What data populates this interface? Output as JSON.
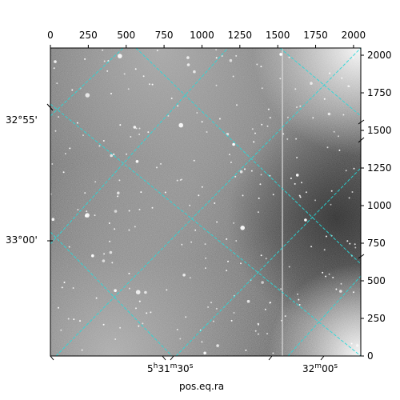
{
  "image": {
    "description_hidden": false,
    "colormap": "gray"
  },
  "axes": {
    "top_ticks": [
      "0",
      "250",
      "500",
      "750",
      "1000",
      "1250",
      "1500",
      "1750",
      "2000"
    ],
    "right_ticks": [
      "0",
      "250",
      "500",
      "750",
      "1000",
      "1250",
      "1500",
      "1750",
      "2000"
    ],
    "dec_labels": [
      "32°55'",
      "33°00'"
    ],
    "ra_labels": [
      "5h31m30s",
      "32m00s"
    ],
    "xlabel": "pos.eq.ra",
    "grid_color": "#27d9d9"
  }
}
